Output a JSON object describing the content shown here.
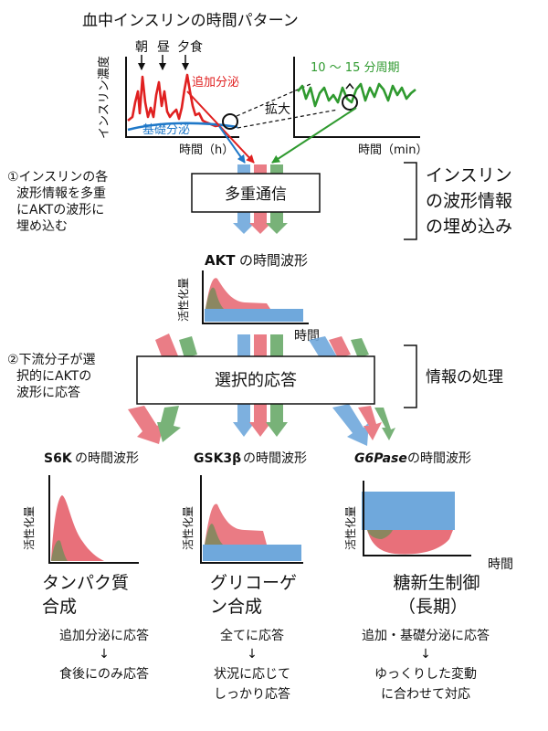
{
  "insulin": {
    "title": "血中インスリンの時間パターン",
    "meals": [
      "朝",
      "昼",
      "夕食"
    ],
    "ylabel": "インスリン濃度",
    "xlabel": "時間（h）",
    "label_additional": "追加分泌",
    "label_basal": "基礎分泌",
    "zoom_label": "拡大",
    "zoom_period": "10 〜 15 分周期",
    "zoom_xlabel": "時間（min）"
  },
  "step1": {
    "note": [
      "①インスリンの各",
      "波形情報を多重",
      "にAKTの波形に",
      "埋め込む"
    ],
    "box": "多重通信",
    "side": [
      "インスリン",
      "の波形情報",
      "の埋め込み"
    ]
  },
  "akt": {
    "title_bold": "AKT",
    "title_rest": "の時間波形",
    "ylabel": "活性化量",
    "xlabel": "時間"
  },
  "step2": {
    "note": [
      "②下流分子が選",
      "択的にAKTの",
      "波形に応答"
    ],
    "box": "選択的応答",
    "side": "情報の処理"
  },
  "outputs": [
    {
      "title_bold": "S6K",
      "title_rest": "の時間波形",
      "ylabel": "活性化量",
      "result": [
        "タンパク質",
        "合成"
      ],
      "desc": [
        "追加分泌に応答",
        "↓",
        "食後にのみ応答"
      ]
    },
    {
      "title_bold": "GSK3β",
      "title_rest": "の時間波形",
      "ylabel": "活性化量",
      "result": [
        "グリコーゲ",
        "ン合成"
      ],
      "desc": [
        "全てに応答",
        "↓",
        "状況に応じて",
        "しっかり応答"
      ]
    },
    {
      "title_bold": "G6Pase",
      "title_rest": "の時間波形",
      "ylabel": "活性化量",
      "xlabel": "時間",
      "result": [
        "糖新生制御",
        "（長期）"
      ],
      "desc": [
        "追加・基礎分泌に応答",
        "↓",
        "ゆっくりした変動",
        "に合わせて対応"
      ]
    }
  ],
  "colors": {
    "additional": "#e8707a",
    "basal": "#6fa8dc",
    "pulse": "#6aaa6a",
    "line_red": "#e02020",
    "line_green": "#2f9a2f",
    "line_blue": "#1f78c8"
  }
}
